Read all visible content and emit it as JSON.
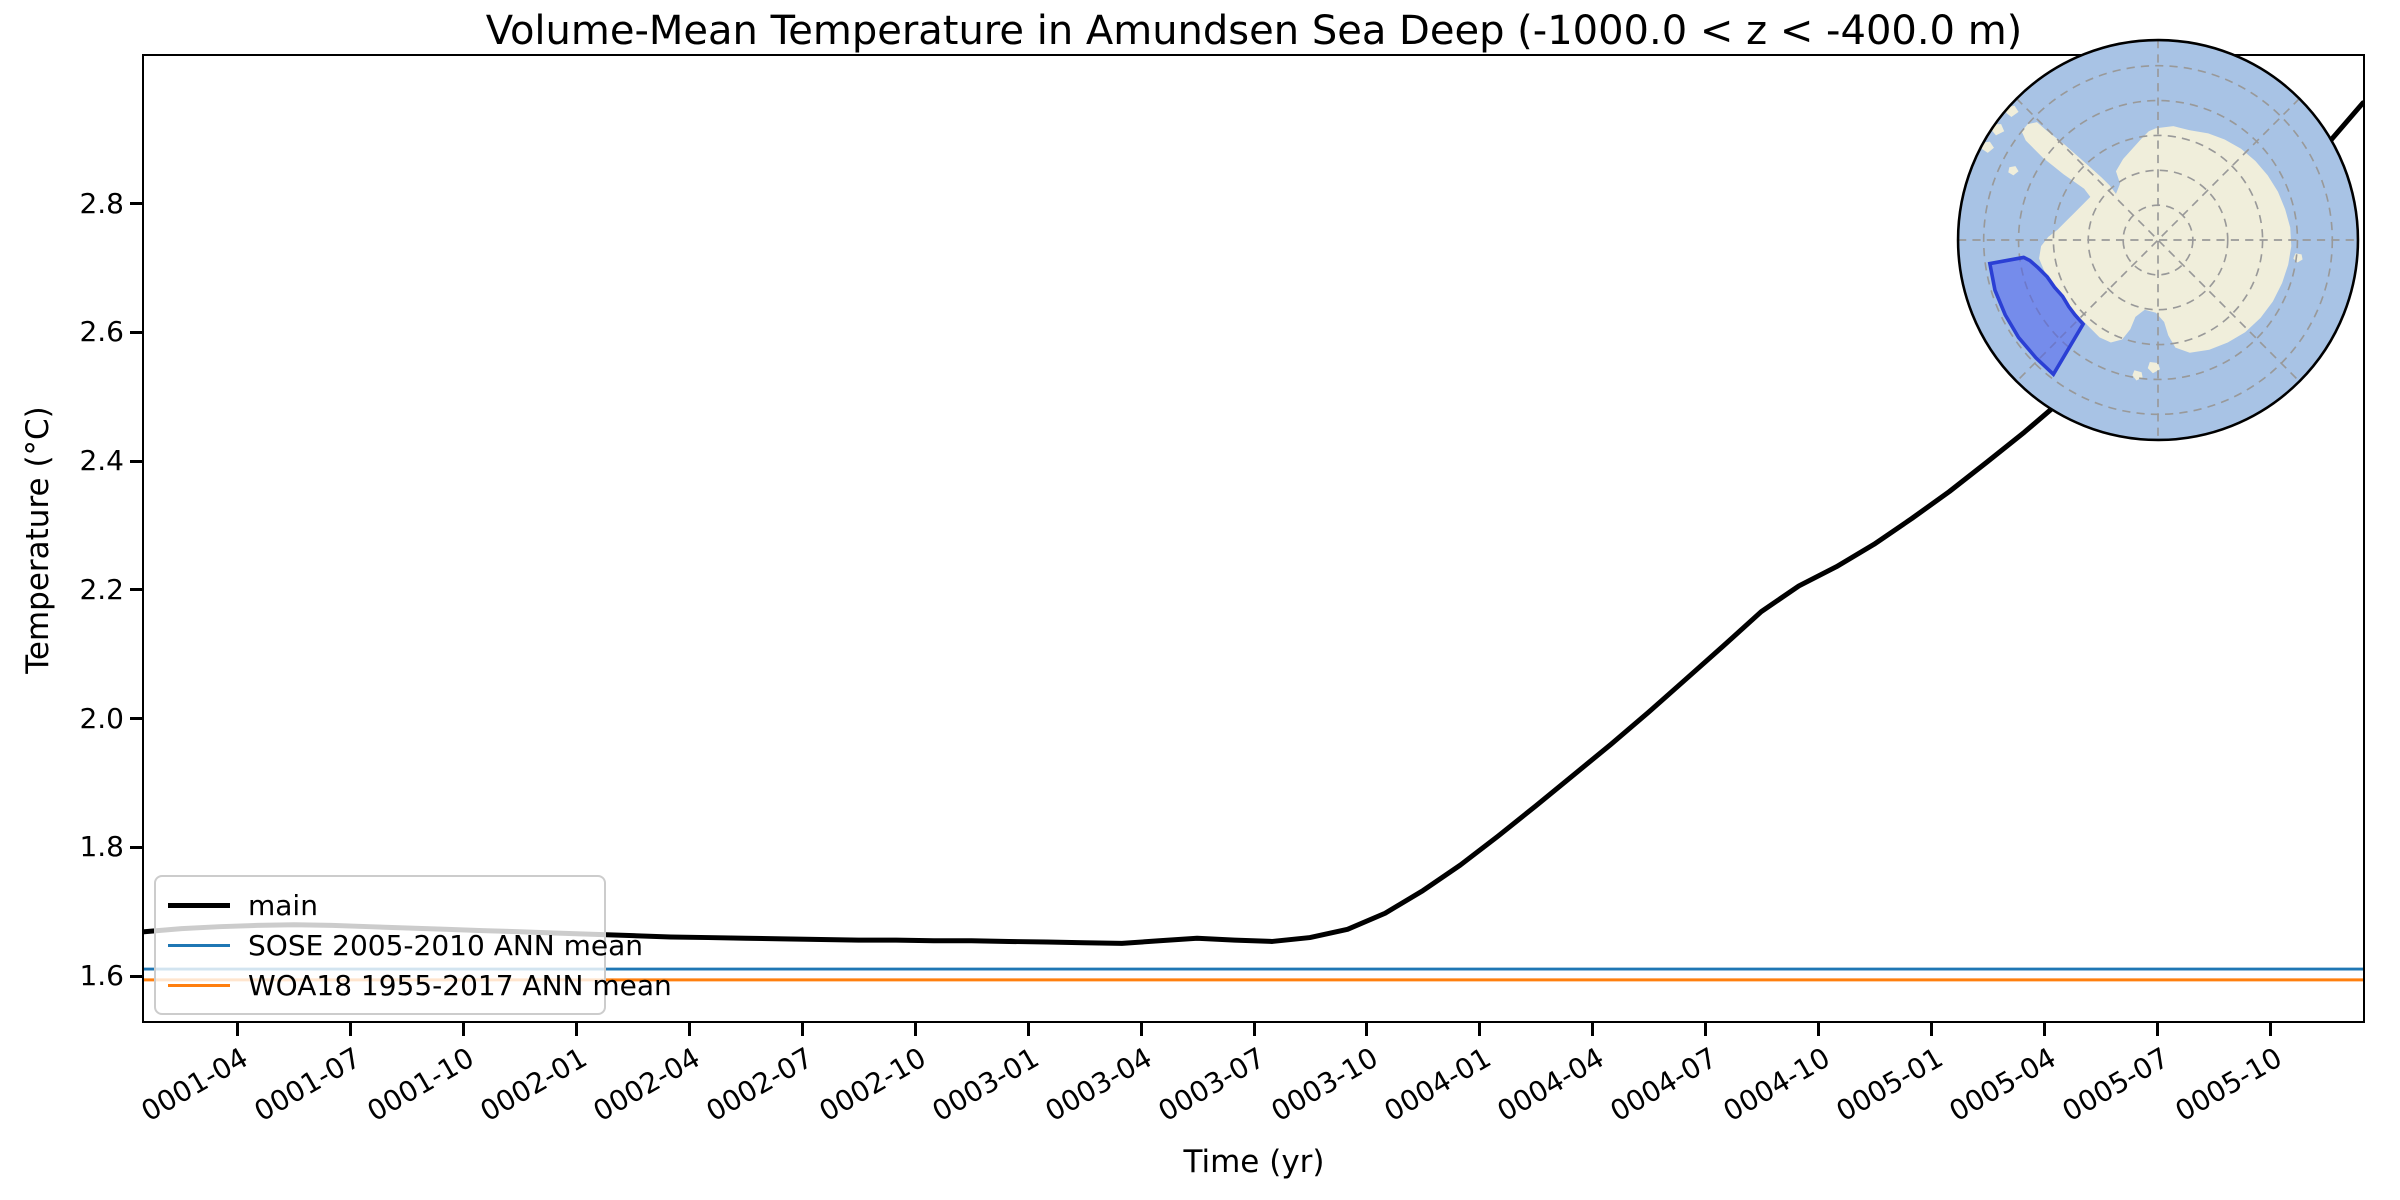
{
  "title": "Volume-Mean Temperature in Amundsen Sea Deep (-1000.0 < z < -400.0 m)",
  "xlabel": "Time (yr)",
  "ylabel": "Temperature (°C)",
  "legend": [
    {
      "label": "main",
      "color": "#000000",
      "line_width": 5
    },
    {
      "label": "SOSE 2005-2010 ANN mean",
      "color": "#1f77b4",
      "line_width": 3
    },
    {
      "label": "WOA18 1955-2017 ANN mean",
      "color": "#ff7f0e",
      "line_width": 3
    }
  ],
  "chart_data": {
    "type": "line",
    "title": "Volume-Mean Temperature in Amundsen Sea Deep (-1000.0 < z < -400.0 m)",
    "xlabel": "Time (yr)",
    "ylabel": "Temperature (°C)",
    "grid": false,
    "legend_position": "lower left",
    "ylim": [
      1.527,
      3.031
    ],
    "y_ticks": [
      "1.6",
      "1.8",
      "2.0",
      "2.2",
      "2.4",
      "2.6",
      "2.8"
    ],
    "x_ticks": [
      "0001-04",
      "0001-07",
      "0001-10",
      "0002-01",
      "0002-04",
      "0002-07",
      "0002-10",
      "0003-01",
      "0003-04",
      "0003-07",
      "0003-10",
      "0004-01",
      "0004-04",
      "0004-07",
      "0004-10",
      "0005-01",
      "0005-04",
      "0005-07",
      "0005-10"
    ],
    "x_start_month": "0001-01",
    "x_end_month": "0005-12",
    "series": [
      {
        "name": "main",
        "color": "#000000",
        "type": "monthly",
        "values": [
          1.666,
          1.671,
          1.674,
          1.676,
          1.677,
          1.676,
          1.674,
          1.672,
          1.67,
          1.668,
          1.666,
          1.664,
          1.662,
          1.66,
          1.658,
          1.657,
          1.656,
          1.655,
          1.654,
          1.653,
          1.653,
          1.652,
          1.652,
          1.651,
          1.65,
          1.649,
          1.648,
          1.652,
          1.656,
          1.653,
          1.651,
          1.657,
          1.67,
          1.695,
          1.73,
          1.77,
          1.815,
          1.862,
          1.91,
          1.958,
          2.008,
          2.06,
          2.112,
          2.165,
          2.205,
          2.235,
          2.27,
          2.31,
          2.352,
          2.398,
          2.445,
          2.495,
          2.548,
          2.602,
          2.658,
          2.713,
          2.768,
          2.82,
          2.89,
          2.958
        ]
      },
      {
        "name": "SOSE 2005-2010 ANN mean",
        "color": "#1f77b4",
        "type": "constant",
        "value": 1.608
      },
      {
        "name": "WOA18 1955-2017 ANN mean",
        "color": "#ff7f0e",
        "type": "constant",
        "value": 1.591
      }
    ],
    "inset_map": {
      "description": "South polar stereographic map of Antarctica with Amundsen Sea region highlighted",
      "ocean_color": "#a8c3e5",
      "land_color": "#f0eedb",
      "highlight_fill": "#4a5ff0",
      "highlight_edge": "#2b3fd4",
      "graticule_color": "#999999",
      "border_color": "#000000"
    }
  }
}
